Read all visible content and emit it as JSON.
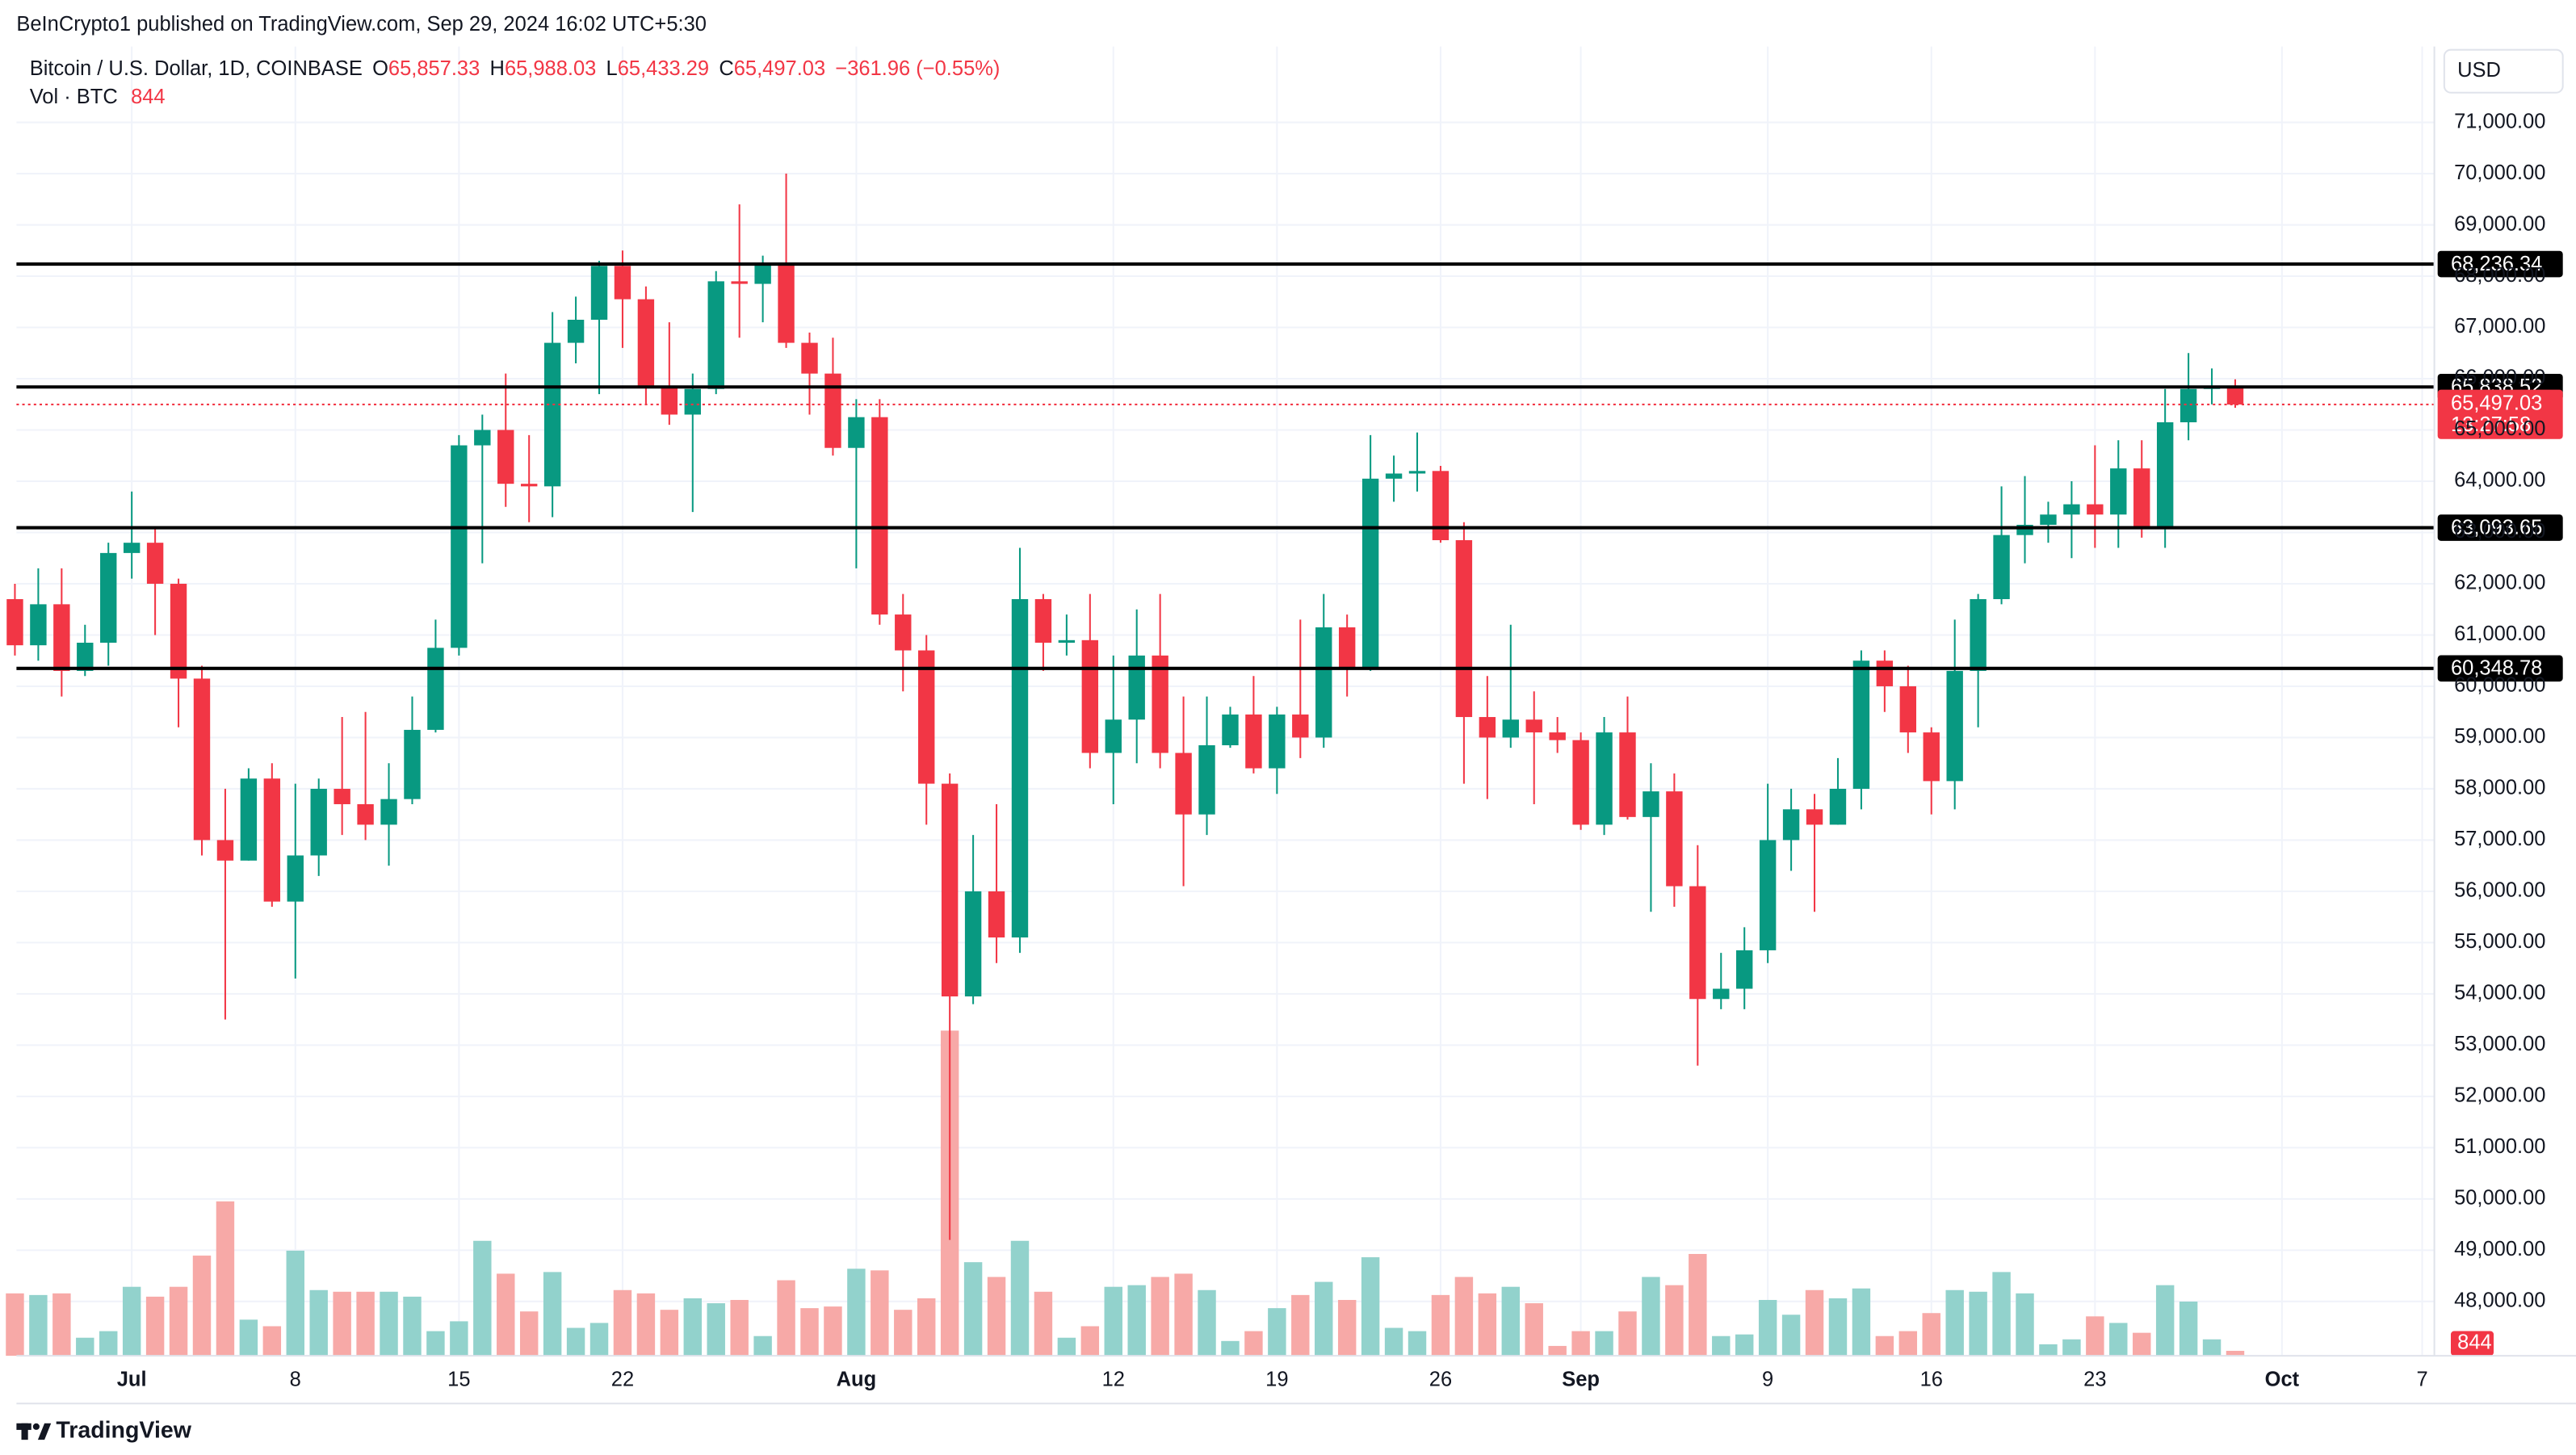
{
  "header": {
    "publisher_line": "BeInCrypto1 published on TradingView.com, Sep 29, 2024 16:02 UTC+5:30",
    "footer": "TradingView"
  },
  "chart_data": {
    "type": "candlestick",
    "title": "Bitcoin / U.S. Dollar, 1D, COINBASE",
    "legend": {
      "o": "O",
      "open": "65,857.33",
      "h": "H",
      "high": "65,988.03",
      "l": "L",
      "low": "65,433.29",
      "c": "C",
      "close": "65,497.03",
      "change": "−361.96 (−0.55%)",
      "volume_title": "Vol · BTC"
    },
    "currency": "USD",
    "up_color": "#089981",
    "down_color": "#f23645",
    "volume_up_color": "#92d2cc",
    "volume_down_color": "#f7a9a7",
    "categories": [
      null,
      null,
      null,
      null,
      null,
      "Jul",
      null,
      null,
      null,
      null,
      null,
      null,
      "8",
      null,
      null,
      null,
      null,
      null,
      null,
      "15",
      null,
      null,
      null,
      null,
      null,
      null,
      "22",
      null,
      null,
      null,
      null,
      null,
      null,
      null,
      null,
      null,
      "Aug",
      null,
      null,
      null,
      null,
      null,
      null,
      null,
      null,
      null,
      null,
      "12",
      null,
      null,
      null,
      null,
      null,
      null,
      "19",
      null,
      null,
      null,
      null,
      null,
      null,
      "26",
      null,
      null,
      null,
      null,
      null,
      "Sep",
      null,
      null,
      null,
      null,
      null,
      null,
      null,
      "9",
      null,
      null,
      null,
      null,
      null,
      null,
      "16",
      null,
      null,
      null,
      null,
      null,
      null,
      "23",
      null,
      null,
      null,
      null,
      null,
      null,
      null,
      "Oct",
      null,
      null,
      null,
      null,
      null,
      "7"
    ],
    "series": {
      "open": [
        61700,
        60800,
        61600,
        60300,
        60850,
        62600,
        62800,
        62000,
        60150,
        57000,
        56600,
        58200,
        55800,
        56700,
        58000,
        57700,
        57300,
        57800,
        59150,
        60750,
        64700,
        65000,
        63950,
        63900,
        66700,
        67150,
        68200,
        67550,
        65850,
        65300,
        65800,
        67900,
        67850,
        68250,
        66700,
        66100,
        64650,
        65250,
        61400,
        60700,
        58100,
        53950,
        56000,
        55100,
        61700,
        60850,
        60900,
        58700,
        59350,
        60600,
        58700,
        57500,
        58850,
        59450,
        58400,
        59450,
        59000,
        61150,
        60350,
        64050,
        64150,
        64200,
        62850,
        59400,
        59000,
        59350,
        59100,
        58950,
        57300,
        59100,
        57450,
        57950,
        56100,
        53900,
        54100,
        54850,
        57000,
        57600,
        57300,
        58000,
        60500,
        60000,
        59100,
        58150,
        60300,
        61700,
        62950,
        63150,
        63350,
        63550,
        63350,
        64250,
        63100,
        65150,
        65800,
        65857.33,
        null,
        null,
        null,
        null,
        null,
        null,
        null,
        null
      ],
      "high": [
        62000,
        62300,
        62300,
        61200,
        62800,
        63800,
        63100,
        62100,
        60400,
        58000,
        58400,
        58500,
        58100,
        58200,
        59400,
        59500,
        58500,
        59800,
        61300,
        64900,
        65300,
        66100,
        64900,
        67300,
        67600,
        68300,
        68500,
        67800,
        67100,
        66100,
        68100,
        69400,
        68400,
        70000,
        66900,
        66800,
        65600,
        65600,
        61800,
        61000,
        58300,
        57100,
        57700,
        62700,
        61800,
        61400,
        61800,
        60600,
        61500,
        61800,
        59800,
        59800,
        59600,
        60200,
        59600,
        61300,
        61800,
        61400,
        64900,
        64500,
        64950,
        64300,
        63200,
        60200,
        61200,
        59900,
        59400,
        59100,
        59400,
        59800,
        58500,
        58300,
        56900,
        54800,
        55300,
        58100,
        58000,
        57900,
        58600,
        60700,
        60700,
        60400,
        59200,
        61300,
        61800,
        63900,
        64100,
        63600,
        64000,
        64700,
        64800,
        64800,
        65800,
        66500,
        66200,
        65988.03,
        null,
        null,
        null,
        null,
        null,
        null,
        null,
        null
      ],
      "low": [
        60600,
        60500,
        59800,
        60200,
        60400,
        62100,
        61000,
        59200,
        56700,
        53500,
        56600,
        55700,
        54300,
        56300,
        57100,
        57000,
        56500,
        57700,
        59100,
        60600,
        62400,
        63500,
        63200,
        63300,
        66300,
        65700,
        66600,
        65500,
        65100,
        63400,
        65700,
        66800,
        67100,
        66600,
        65300,
        64500,
        62300,
        61200,
        59900,
        57300,
        49200,
        53800,
        54600,
        54800,
        60300,
        60600,
        58400,
        57700,
        58500,
        58400,
        56100,
        57100,
        58800,
        58300,
        57900,
        58600,
        58800,
        59800,
        60300,
        63600,
        63800,
        62800,
        58100,
        57800,
        58800,
        57700,
        58700,
        57200,
        57100,
        57400,
        55600,
        55700,
        52600,
        53700,
        53700,
        54600,
        56400,
        55600,
        57300,
        57600,
        59500,
        58700,
        57500,
        57600,
        59200,
        61600,
        62400,
        62800,
        62500,
        62700,
        62700,
        62900,
        62700,
        64800,
        65500,
        65433.29,
        null,
        null,
        null,
        null,
        null,
        null,
        null,
        null
      ],
      "close": [
        60800,
        61600,
        60300,
        60850,
        62600,
        62800,
        62000,
        60150,
        57000,
        56600,
        58200,
        55800,
        56700,
        58000,
        57700,
        57300,
        57800,
        59150,
        60750,
        64700,
        65000,
        63950,
        63900,
        66700,
        67150,
        68200,
        67550,
        65850,
        65300,
        65800,
        67900,
        67850,
        68250,
        66700,
        66100,
        64650,
        65250,
        61400,
        60700,
        58100,
        53950,
        56000,
        55100,
        61700,
        60850,
        60900,
        58700,
        59350,
        60600,
        58700,
        57500,
        58850,
        59450,
        58400,
        59450,
        59000,
        61150,
        60350,
        64050,
        64150,
        64200,
        62850,
        59400,
        59000,
        59350,
        59100,
        58950,
        57300,
        59100,
        57450,
        57950,
        56100,
        53900,
        54100,
        54850,
        57000,
        57600,
        57300,
        58000,
        60500,
        60000,
        59100,
        58150,
        60300,
        61700,
        62950,
        63150,
        63350,
        63550,
        63350,
        64250,
        63100,
        65150,
        65800,
        65850,
        65497.03,
        null,
        null,
        null,
        null,
        null,
        null,
        null,
        null
      ],
      "volume": [
        10640,
        10360,
        10640,
        3080,
        4200,
        11760,
        10080,
        11760,
        17080,
        26320,
        6160,
        5040,
        17920,
        11200,
        10920,
        10920,
        10920,
        10080,
        4200,
        5880,
        19600,
        14000,
        7560,
        14280,
        4760,
        5600,
        11200,
        10640,
        7840,
        9800,
        8960,
        9520,
        3360,
        12880,
        8120,
        8400,
        14840,
        14560,
        7840,
        9800,
        55440,
        15960,
        13440,
        19600,
        10920,
        3080,
        5040,
        11760,
        12040,
        13440,
        14000,
        11200,
        2520,
        4200,
        8120,
        10360,
        12600,
        9520,
        16800,
        4760,
        4200,
        10360,
        13440,
        10640,
        11760,
        8960,
        1680,
        4200,
        4200,
        7560,
        13440,
        12040,
        17360,
        3360,
        3640,
        9520,
        7000,
        11200,
        9800,
        11480,
        3360,
        4200,
        7280,
        11200,
        10920,
        14280,
        10640,
        1960,
        2800,
        6720,
        5600,
        3920,
        12040,
        9240,
        2800,
        844,
        null,
        null,
        null,
        null,
        null,
        null,
        null,
        null
      ]
    },
    "ylim": [
      46940,
      72480
    ],
    "volume_ylim": [
      0,
      130000
    ],
    "yticks": [
      {
        "value": 48000,
        "label": "48,000.00"
      },
      {
        "value": 49000,
        "label": "49,000.00"
      },
      {
        "value": 50000,
        "label": "50,000.00"
      },
      {
        "value": 51000,
        "label": "51,000.00"
      },
      {
        "value": 52000,
        "label": "52,000.00"
      },
      {
        "value": 53000,
        "label": "53,000.00"
      },
      {
        "value": 54000,
        "label": "54,000.00"
      },
      {
        "value": 55000,
        "label": "55,000.00"
      },
      {
        "value": 56000,
        "label": "56,000.00"
      },
      {
        "value": 57000,
        "label": "57,000.00"
      },
      {
        "value": 58000,
        "label": "58,000.00"
      },
      {
        "value": 59000,
        "label": "59,000.00"
      },
      {
        "value": 60000,
        "label": "60,000.00"
      },
      {
        "value": 61000,
        "label": "61,000.00"
      },
      {
        "value": 62000,
        "label": "62,000.00"
      },
      {
        "value": 63000,
        "label": "63,000.00"
      },
      {
        "value": 64000,
        "label": "64,000.00"
      },
      {
        "value": 65000,
        "label": "65,000.00"
      },
      {
        "value": 66000,
        "label": "66,000.00"
      },
      {
        "value": 67000,
        "label": "67,000.00"
      },
      {
        "value": 68000,
        "label": "68,000.00"
      },
      {
        "value": 69000,
        "label": "69,000.00"
      },
      {
        "value": 70000,
        "label": "70,000.00"
      },
      {
        "value": 71000,
        "label": "71,000.00"
      }
    ],
    "levels": [
      {
        "value": 68236.34,
        "label": "68,236.34"
      },
      {
        "value": 65838.52,
        "label": "65,838.52"
      },
      {
        "value": 63093.65,
        "label": "63,093.65"
      },
      {
        "value": 60348.78,
        "label": "60,348.78"
      }
    ],
    "last_price": {
      "value": 65497.03,
      "label": "65,497.03",
      "countdown": "13:27:58"
    },
    "grid": true
  }
}
